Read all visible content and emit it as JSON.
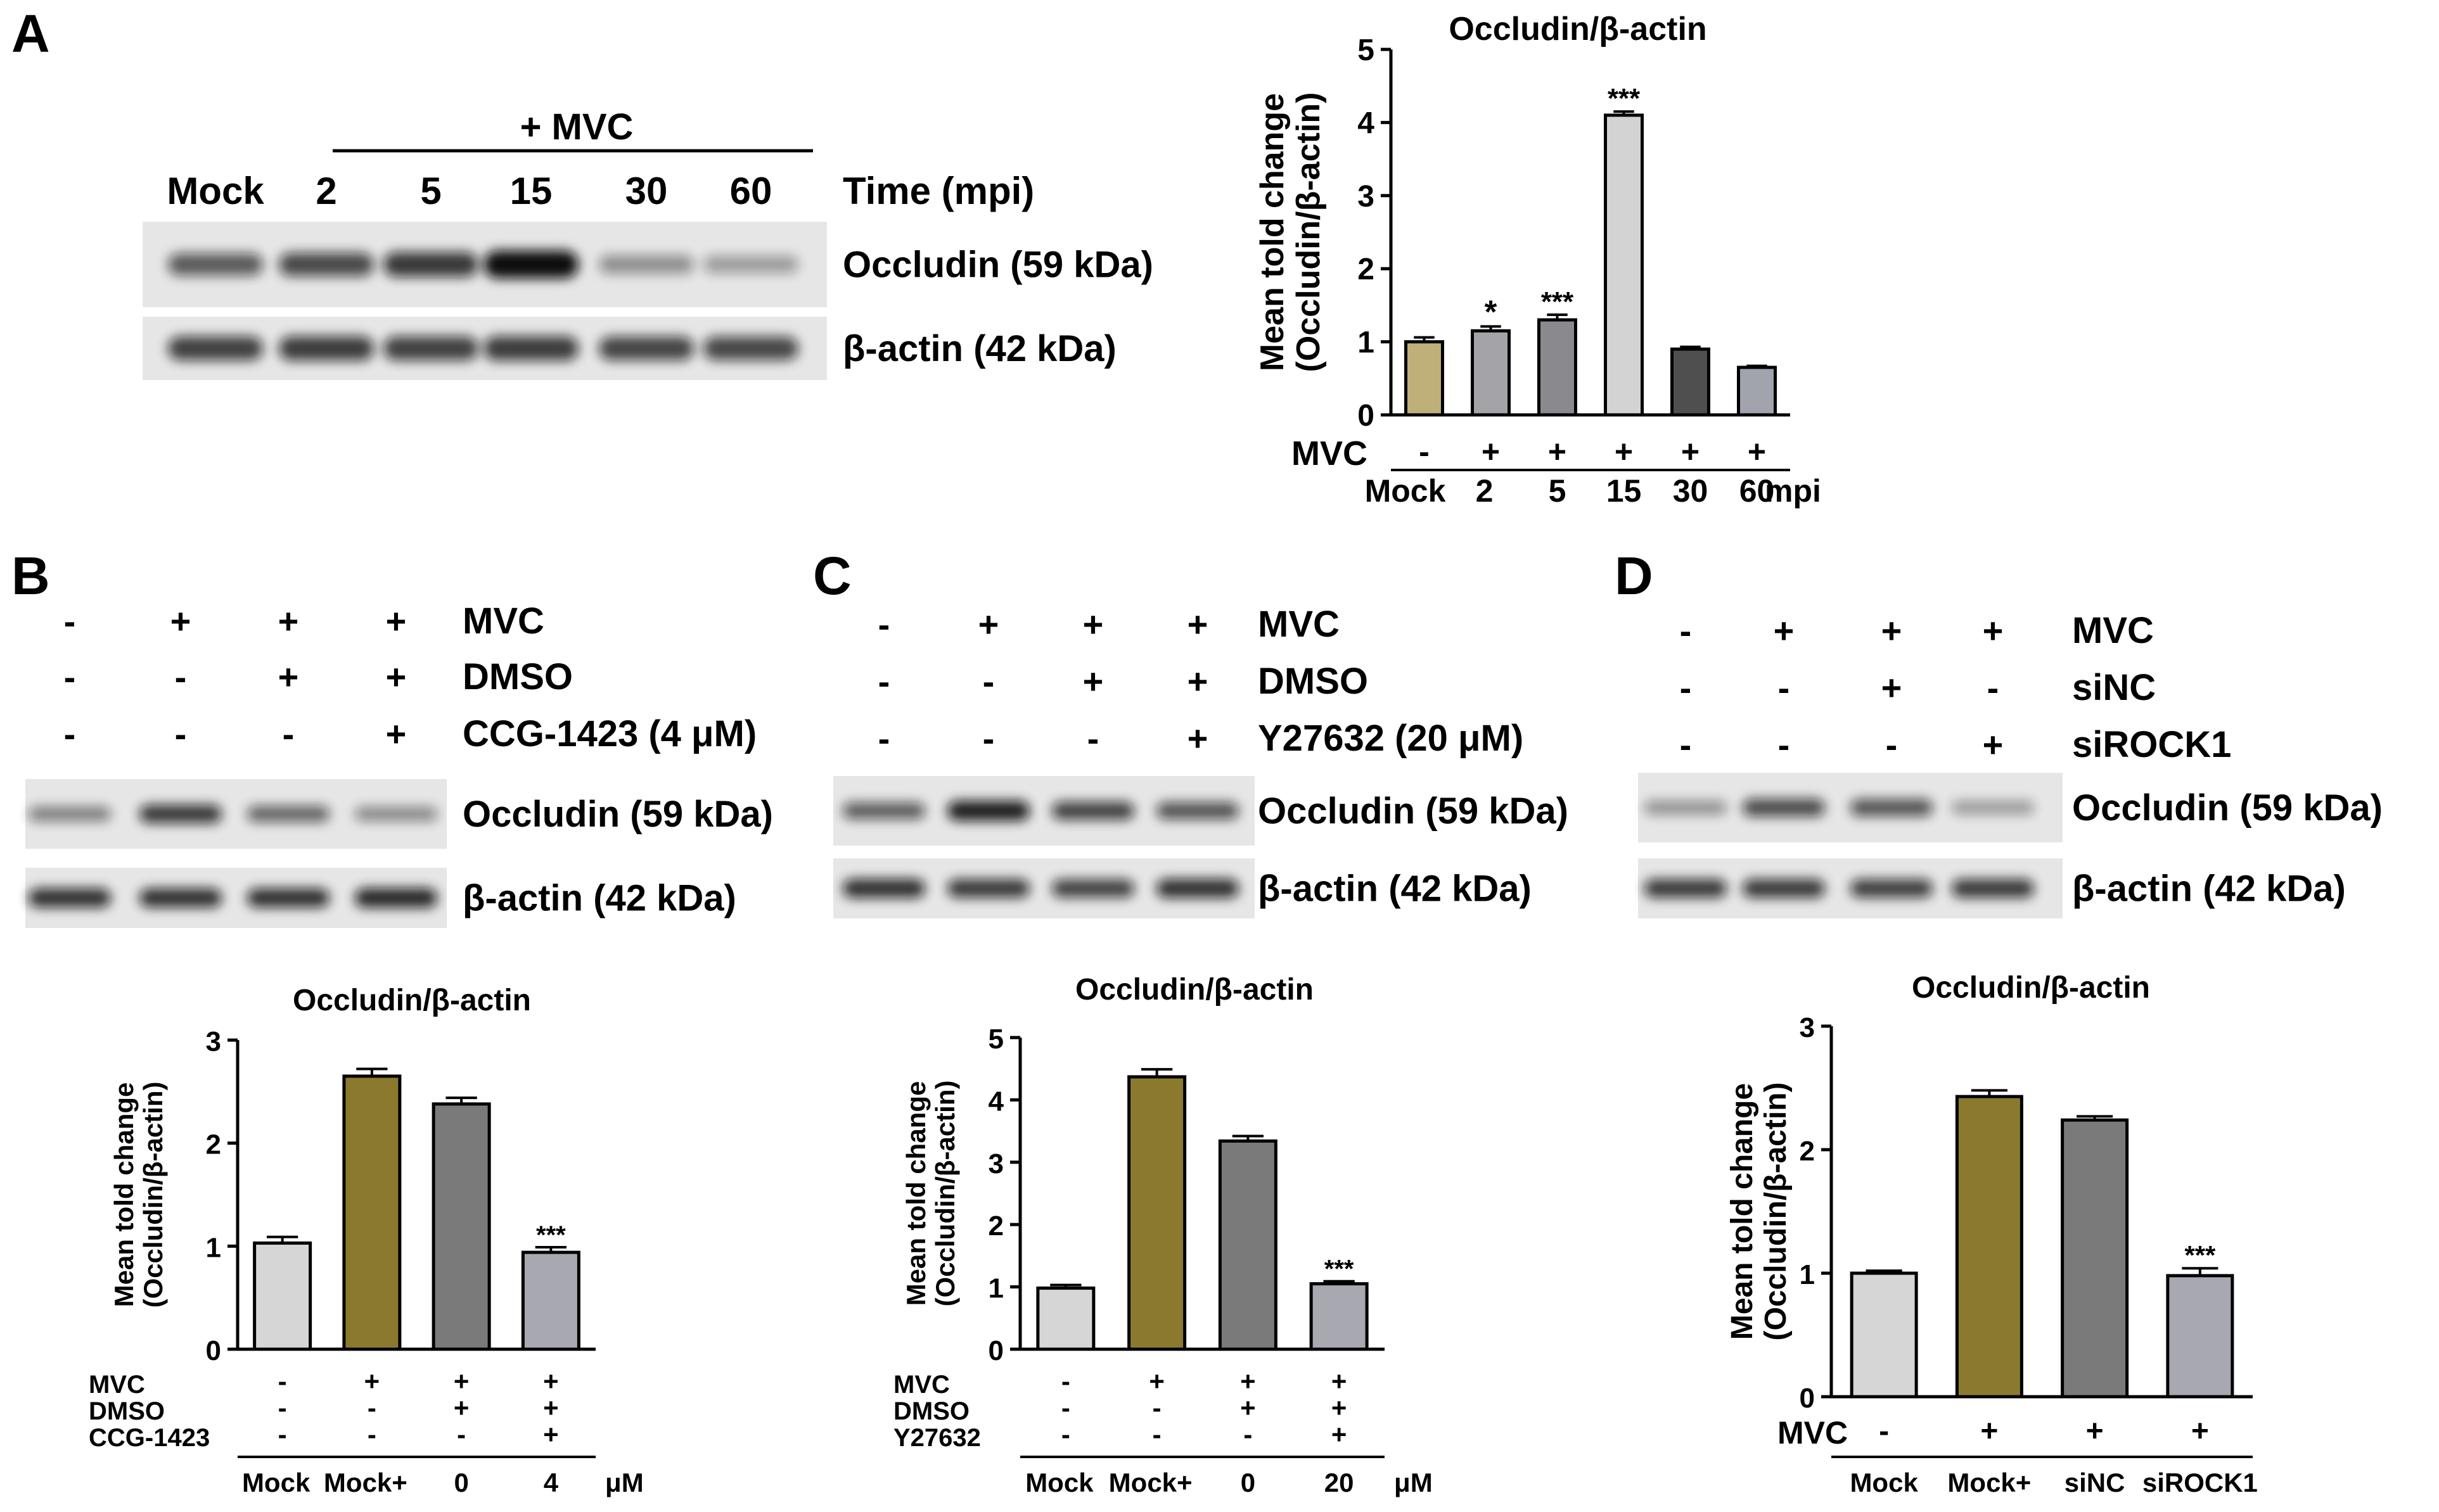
{
  "figure": {
    "panels": [
      "A",
      "B",
      "C",
      "D"
    ]
  },
  "blots": {
    "A": {
      "group_label": "+ MVC",
      "lane_labels": [
        "Mock",
        "2",
        "5",
        "15",
        "30",
        "60"
      ],
      "axis_label": "Time (mpi)",
      "bands": [
        {
          "label": "Occludin (59 kDa)",
          "intensity": [
            0.55,
            0.65,
            0.75,
            1.0,
            0.25,
            0.18
          ]
        },
        {
          "label": "β-actin (42 kDa)",
          "intensity": [
            0.7,
            0.72,
            0.7,
            0.72,
            0.68,
            0.66
          ]
        }
      ]
    },
    "B": {
      "rows": [
        {
          "label": "MVC",
          "signs": [
            "-",
            "+",
            "+",
            "+"
          ]
        },
        {
          "label": "DMSO",
          "signs": [
            "-",
            "-",
            "+",
            "+"
          ]
        },
        {
          "label": "CCG-1423 (4 μM)",
          "signs": [
            "-",
            "-",
            "-",
            "+"
          ]
        }
      ],
      "bands": [
        {
          "label": "Occludin (59 kDa)",
          "intensity": [
            0.35,
            0.75,
            0.5,
            0.3
          ]
        },
        {
          "label": "β-actin (42 kDa)",
          "intensity": [
            0.8,
            0.8,
            0.8,
            0.85
          ]
        }
      ]
    },
    "C": {
      "rows": [
        {
          "label": "MVC",
          "signs": [
            "-",
            "+",
            "+",
            "+"
          ]
        },
        {
          "label": "DMSO",
          "signs": [
            "-",
            "-",
            "+",
            "+"
          ]
        },
        {
          "label": "Y27632 (20 μM)",
          "signs": [
            "-",
            "-",
            "-",
            "+"
          ]
        }
      ],
      "bands": [
        {
          "label": "Occludin (59 kDa)",
          "intensity": [
            0.55,
            0.9,
            0.7,
            0.6
          ]
        },
        {
          "label": "β-actin (42 kDa)",
          "intensity": [
            0.8,
            0.75,
            0.7,
            0.8
          ]
        }
      ]
    },
    "D": {
      "rows": [
        {
          "label": "MVC",
          "signs": [
            "-",
            "+",
            "+",
            "+"
          ]
        },
        {
          "label": "siNC",
          "signs": [
            "-",
            "-",
            "+",
            "-"
          ]
        },
        {
          "label": "siROCK1",
          "signs": [
            "-",
            "-",
            "-",
            "+"
          ]
        }
      ],
      "bands": [
        {
          "label": "Occludin (59 kDa)",
          "intensity": [
            0.25,
            0.65,
            0.6,
            0.2
          ]
        },
        {
          "label": "β-actin (42 kDa)",
          "intensity": [
            0.75,
            0.75,
            0.72,
            0.75
          ]
        }
      ]
    }
  },
  "chart_data": [
    {
      "panel": "A",
      "type": "bar",
      "title": "Occludin/β-actin",
      "ylabel": "Mean told change (Occludin/β-actin)",
      "ylim": [
        0,
        5
      ],
      "yticks": [
        0,
        1,
        2,
        3,
        4,
        5
      ],
      "categories": [
        "Mock",
        "2",
        "5",
        "15",
        "30",
        "60"
      ],
      "values": [
        1.0,
        1.15,
        1.3,
        4.1,
        0.9,
        0.65
      ],
      "errors": [
        0.06,
        0.06,
        0.07,
        0.05,
        0.03,
        0.02
      ],
      "significance": [
        "",
        "*",
        "***",
        "***",
        "",
        ""
      ],
      "colors": [
        "#bfb07a",
        "#a4a4a8",
        "#8a8a8e",
        "#d3d3d3",
        "#4f4f4f",
        "#a2a4ad"
      ],
      "condition_rows": [
        {
          "label": "MVC",
          "signs": [
            "-",
            "+",
            "+",
            "+",
            "+",
            "+"
          ]
        }
      ],
      "unit_label": "mpi"
    },
    {
      "panel": "B",
      "type": "bar",
      "title": "Occludin/β-actin",
      "ylabel": "Mean told change (Occludin/β-actin)",
      "ylim": [
        0,
        3
      ],
      "yticks": [
        0,
        1,
        2,
        3
      ],
      "categories": [
        "Mock",
        "Mock+",
        "0",
        "4"
      ],
      "values": [
        1.03,
        2.65,
        2.38,
        0.94
      ],
      "errors": [
        0.06,
        0.07,
        0.06,
        0.05
      ],
      "significance": [
        "",
        "",
        "",
        "***"
      ],
      "colors": [
        "#d6d6d6",
        "#8b7a2e",
        "#7a7a7a",
        "#a7a8b0"
      ],
      "condition_rows": [
        {
          "label": "MVC",
          "signs": [
            "-",
            "+",
            "+",
            "+"
          ]
        },
        {
          "label": "DMSO",
          "signs": [
            "-",
            "-",
            "+",
            "+"
          ]
        },
        {
          "label": "CCG-1423",
          "signs": [
            "-",
            "-",
            "-",
            "+"
          ]
        }
      ],
      "unit_label": "μM"
    },
    {
      "panel": "C",
      "type": "bar",
      "title": "Occludin/β-actin",
      "ylabel": "Mean told change (Occludin/β-actin)",
      "ylim": [
        0,
        5
      ],
      "yticks": [
        0,
        1,
        2,
        3,
        4,
        5
      ],
      "categories": [
        "Mock",
        "Mock+",
        "0",
        "20"
      ],
      "values": [
        0.98,
        4.37,
        3.34,
        1.05
      ],
      "errors": [
        0.05,
        0.12,
        0.08,
        0.04
      ],
      "significance": [
        "",
        "",
        "",
        "***"
      ],
      "colors": [
        "#d6d6d6",
        "#8b7a2e",
        "#7a7a7a",
        "#a7a8b0"
      ],
      "condition_rows": [
        {
          "label": "MVC",
          "signs": [
            "-",
            "+",
            "+",
            "+"
          ]
        },
        {
          "label": "DMSO",
          "signs": [
            "-",
            "-",
            "+",
            "+"
          ]
        },
        {
          "label": "Y27632",
          "signs": [
            "-",
            "-",
            "-",
            "+"
          ]
        }
      ],
      "unit_label": "μM"
    },
    {
      "panel": "D",
      "type": "bar",
      "title": "Occludin/β-actin",
      "ylabel": "Mean told change (Occludin/β-actin)",
      "ylim": [
        0,
        3
      ],
      "yticks": [
        0,
        1,
        2,
        3
      ],
      "categories": [
        "Mock",
        "Mock+",
        "siNC",
        "siROCK1"
      ],
      "values": [
        1.0,
        2.43,
        2.24,
        0.98
      ],
      "errors": [
        0.02,
        0.05,
        0.03,
        0.06
      ],
      "significance": [
        "",
        "",
        "",
        "***"
      ],
      "colors": [
        "#d6d6d6",
        "#8b7a2e",
        "#7a7a7a",
        "#a7a8b0"
      ],
      "condition_rows": [
        {
          "label": "MVC",
          "signs": [
            "-",
            "+",
            "+",
            "+"
          ]
        }
      ],
      "unit_label": ""
    }
  ]
}
